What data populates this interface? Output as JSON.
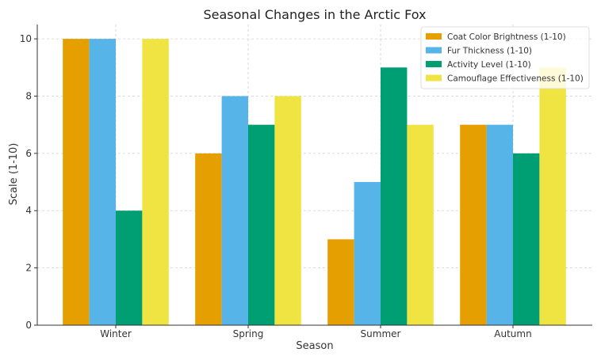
{
  "chart_data": {
    "type": "bar",
    "title": "Seasonal Changes in the Arctic Fox",
    "xlabel": "Season",
    "ylabel": "Scale (1-10)",
    "categories": [
      "Winter",
      "Spring",
      "Summer",
      "Autumn"
    ],
    "ylim": [
      0,
      10.5
    ],
    "yticks": [
      0,
      2,
      4,
      6,
      8,
      10
    ],
    "grid": true,
    "legend_position": "top-right",
    "series": [
      {
        "name": "Coat Color Brightness (1-10)",
        "color": "#E69F00",
        "values": [
          10,
          6,
          3,
          7
        ]
      },
      {
        "name": "Fur Thickness (1-10)",
        "color": "#56B4E9",
        "values": [
          10,
          8,
          5,
          7
        ]
      },
      {
        "name": "Activity Level (1-10)",
        "color": "#009E73",
        "values": [
          4,
          7,
          9,
          6
        ]
      },
      {
        "name": "Camouflage Effectiveness (1-10)",
        "color": "#F0E442",
        "values": [
          10,
          8,
          7,
          9
        ]
      }
    ]
  }
}
